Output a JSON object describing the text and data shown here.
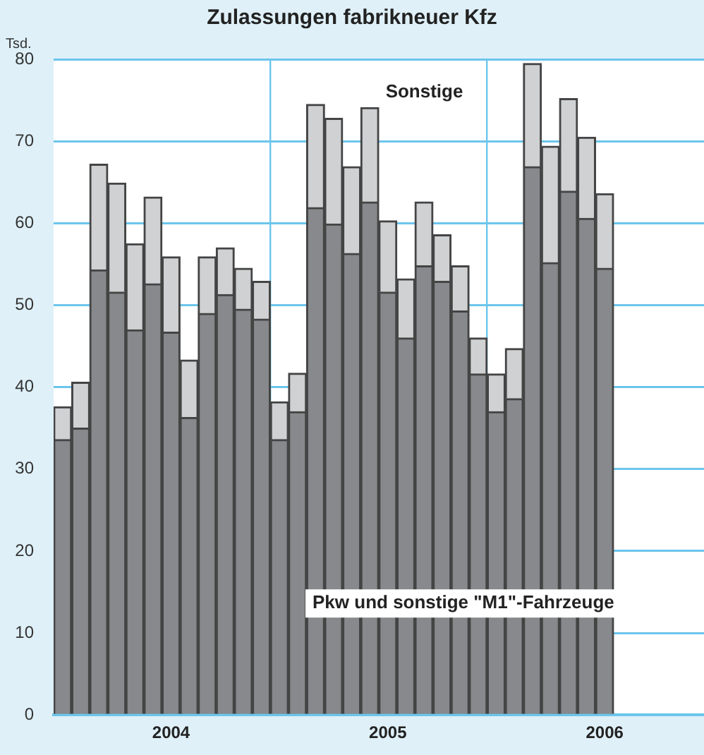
{
  "chart_data": {
    "type": "bar",
    "title": "Zulassungen fabrikneuer Kfz",
    "ylabel": "Tsd.",
    "stacked": true,
    "legend": false,
    "grid": true,
    "categories": [
      null,
      null,
      null,
      null,
      null,
      null,
      "2004",
      null,
      null,
      null,
      null,
      null,
      null,
      null,
      null,
      null,
      null,
      null,
      "2005",
      null,
      null,
      null,
      null,
      null,
      null,
      null,
      null,
      null,
      null,
      null,
      "2006",
      null,
      null,
      null,
      null,
      null
    ],
    "series": [
      {
        "name": "Pkw und sonstige \"M1\"-Fahrzeuge",
        "color": "#87898c",
        "values": [
          33.6,
          35.0,
          54.3,
          51.6,
          47.0,
          52.6,
          46.7,
          36.3,
          49.0,
          51.3,
          49.5,
          48.3,
          33.6,
          37.0,
          61.9,
          59.9,
          56.3,
          62.6,
          51.6,
          46.0,
          54.8,
          52.9,
          49.3,
          41.6,
          37.0,
          38.6,
          66.9,
          55.2,
          63.9,
          60.6,
          54.5,
          null,
          null,
          null,
          null,
          null
        ]
      },
      {
        "name": "Sonstige",
        "color": "#d0d1d3",
        "values": [
          4.0,
          5.6,
          12.9,
          13.3,
          10.5,
          10.6,
          9.2,
          7.0,
          6.9,
          5.7,
          5.0,
          4.6,
          4.6,
          4.7,
          12.6,
          12.9,
          10.6,
          11.5,
          8.7,
          7.2,
          7.8,
          5.7,
          5.5,
          4.4,
          4.6,
          6.1,
          12.6,
          14.2,
          11.3,
          9.9,
          9.1,
          null,
          null,
          null,
          null,
          null
        ]
      }
    ],
    "ylim": [
      0,
      80
    ],
    "yticks": [
      0,
      10,
      20,
      30,
      40,
      50,
      60,
      70,
      80
    ]
  }
}
